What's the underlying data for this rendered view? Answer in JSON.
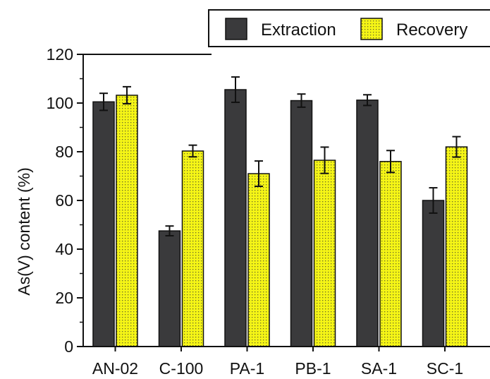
{
  "chart_data": {
    "type": "bar",
    "title": "",
    "xlabel": "",
    "ylabel": "As(V) content (%)",
    "ylim": [
      0,
      120
    ],
    "yticks": [
      0,
      20,
      40,
      60,
      80,
      100,
      120
    ],
    "grid": false,
    "legend_position": "top-right",
    "categories": [
      "AN-02",
      "C-100",
      "PA-1",
      "PB-1",
      "SA-1",
      "SC-1"
    ],
    "series": [
      {
        "name": "Extraction",
        "color": "#3a3a3c",
        "values": [
          100.5,
          47.5,
          105.5,
          101.0,
          101.2,
          60.0
        ],
        "errors": [
          3.5,
          2.0,
          5.2,
          2.7,
          2.2,
          5.2
        ]
      },
      {
        "name": "Recovery",
        "color": "#f5f516",
        "pattern": "dotted",
        "values": [
          103.2,
          80.3,
          71.0,
          76.5,
          76.0,
          82.0
        ],
        "errors": [
          3.5,
          2.4,
          5.2,
          5.4,
          4.5,
          4.2
        ]
      }
    ]
  }
}
